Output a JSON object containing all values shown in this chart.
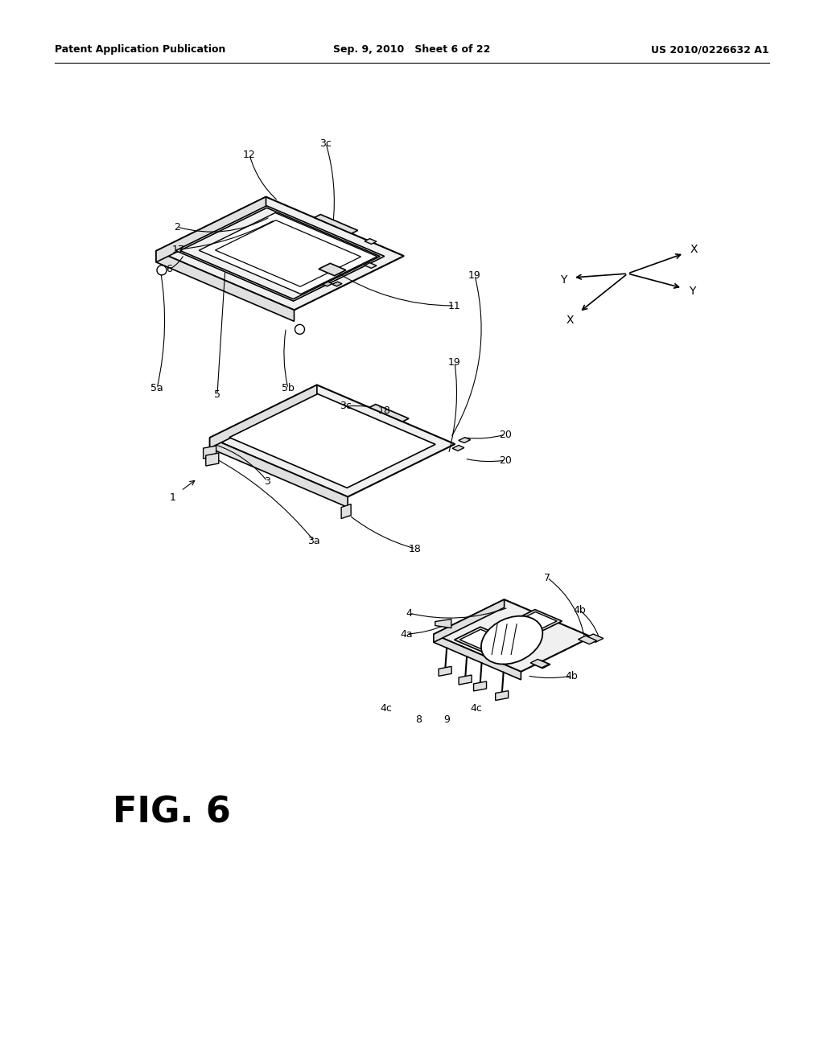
{
  "bg_color": "#ffffff",
  "header_left": "Patent Application Publication",
  "header_mid": "Sep. 9, 2010   Sheet 6 of 22",
  "header_right": "US 2010/0226632 A1",
  "fig_label": "FIG. 6",
  "line_color": "#000000",
  "fill_light": "#f0f0f0",
  "fill_mid": "#e0e0e0",
  "fill_dark": "#c8c8c8"
}
